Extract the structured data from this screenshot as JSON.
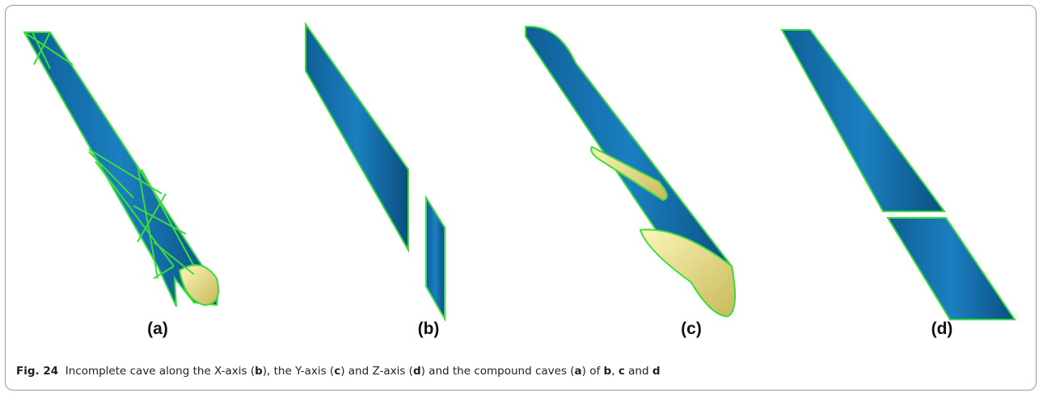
{
  "panels": [
    {
      "label": "(a)"
    },
    {
      "label": "(b)"
    },
    {
      "label": "(c)"
    },
    {
      "label": "(d)"
    }
  ],
  "caption": {
    "label": "Fig. 24",
    "parts": [
      "Incomplete cave along the X-axis (",
      "b",
      "), the Y-axis (",
      "c",
      ") and Z-axis (",
      "d",
      ") and the compound caves (",
      "a",
      ") of ",
      "b",
      ", ",
      "c",
      " and ",
      "d"
    ]
  }
}
